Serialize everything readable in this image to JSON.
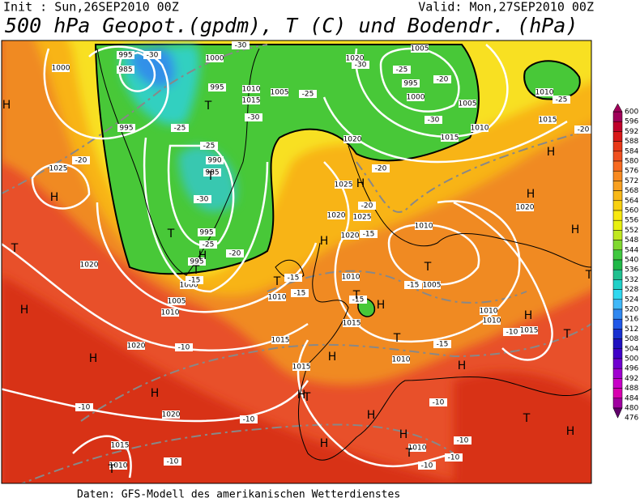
{
  "header": {
    "init": "Init : Sun,26SEP2010 00Z",
    "valid": "Valid: Mon,27SEP2010 00Z",
    "title": "500 hPa Geopot.(gpdm), T (C) und Bodendr. (hPa)"
  },
  "footer": "Daten: GFS-Modell des amerikanischen Wetterdienstes",
  "map": {
    "isobar_labels": [
      "995",
      "985",
      "1000",
      "1000",
      "995",
      "1010",
      "1015",
      "1005",
      "995",
      "990",
      "985",
      "995",
      "995",
      "1000",
      "1005",
      "1010",
      "1025",
      "1020",
      "1020",
      "1005",
      "995",
      "1000",
      "1005",
      "1010",
      "1015",
      "1020",
      "1010",
      "1015",
      "1020",
      "1025",
      "1020",
      "1025",
      "1020",
      "1010",
      "1010",
      "1005",
      "1010",
      "1015",
      "1015",
      "1010",
      "1015",
      "1010",
      "1010",
      "1015",
      "1020",
      "1020",
      "1010",
      "1015",
      "1010"
    ],
    "temperature_labels": [
      "-30",
      "-30",
      "-25",
      "-25",
      "-30",
      "-20",
      "-25",
      "-30",
      "-25",
      "-20",
      "-15",
      "-30",
      "-25",
      "-20",
      "-30",
      "-20",
      "-25",
      "-20",
      "-20",
      "-15",
      "-15",
      "-15",
      "-15",
      "-15",
      "-15",
      "-10",
      "-10",
      "-10",
      "-10",
      "-10",
      "-10",
      "-10",
      "-10",
      "-10"
    ],
    "pressure_centers": [
      "H",
      "H",
      "T",
      "H",
      "H",
      "H",
      "T",
      "T",
      "T",
      "T",
      "T",
      "T",
      "T",
      "H",
      "T",
      "H",
      "H",
      "T",
      "H",
      "H",
      "T",
      "H",
      "H",
      "H",
      "T",
      "H",
      "T",
      "H",
      "H",
      "T",
      "H",
      "H",
      "T",
      "H",
      "H"
    ]
  },
  "colorbar": {
    "levels": [
      600,
      596,
      592,
      588,
      584,
      580,
      576,
      572,
      568,
      564,
      560,
      556,
      552,
      548,
      544,
      540,
      536,
      532,
      528,
      524,
      520,
      516,
      512,
      508,
      504,
      500,
      496,
      492,
      488,
      484,
      480,
      476
    ],
    "colors": [
      "#a0005a",
      "#c0002a",
      "#d81818",
      "#e83818",
      "#f05020",
      "#f86a20",
      "#f88a20",
      "#f8a020",
      "#f8b818",
      "#f8d010",
      "#f8e810",
      "#e8f010",
      "#c0e820",
      "#80d830",
      "#40c840",
      "#20b848",
      "#20c090",
      "#20d0c8",
      "#30d8f0",
      "#40b8f8",
      "#3088f0",
      "#2058e8",
      "#1830d0",
      "#2010c0",
      "#4000c8",
      "#7000d0",
      "#a000d0",
      "#c800c8",
      "#d800b0",
      "#a000a0",
      "#60006a"
    ]
  }
}
